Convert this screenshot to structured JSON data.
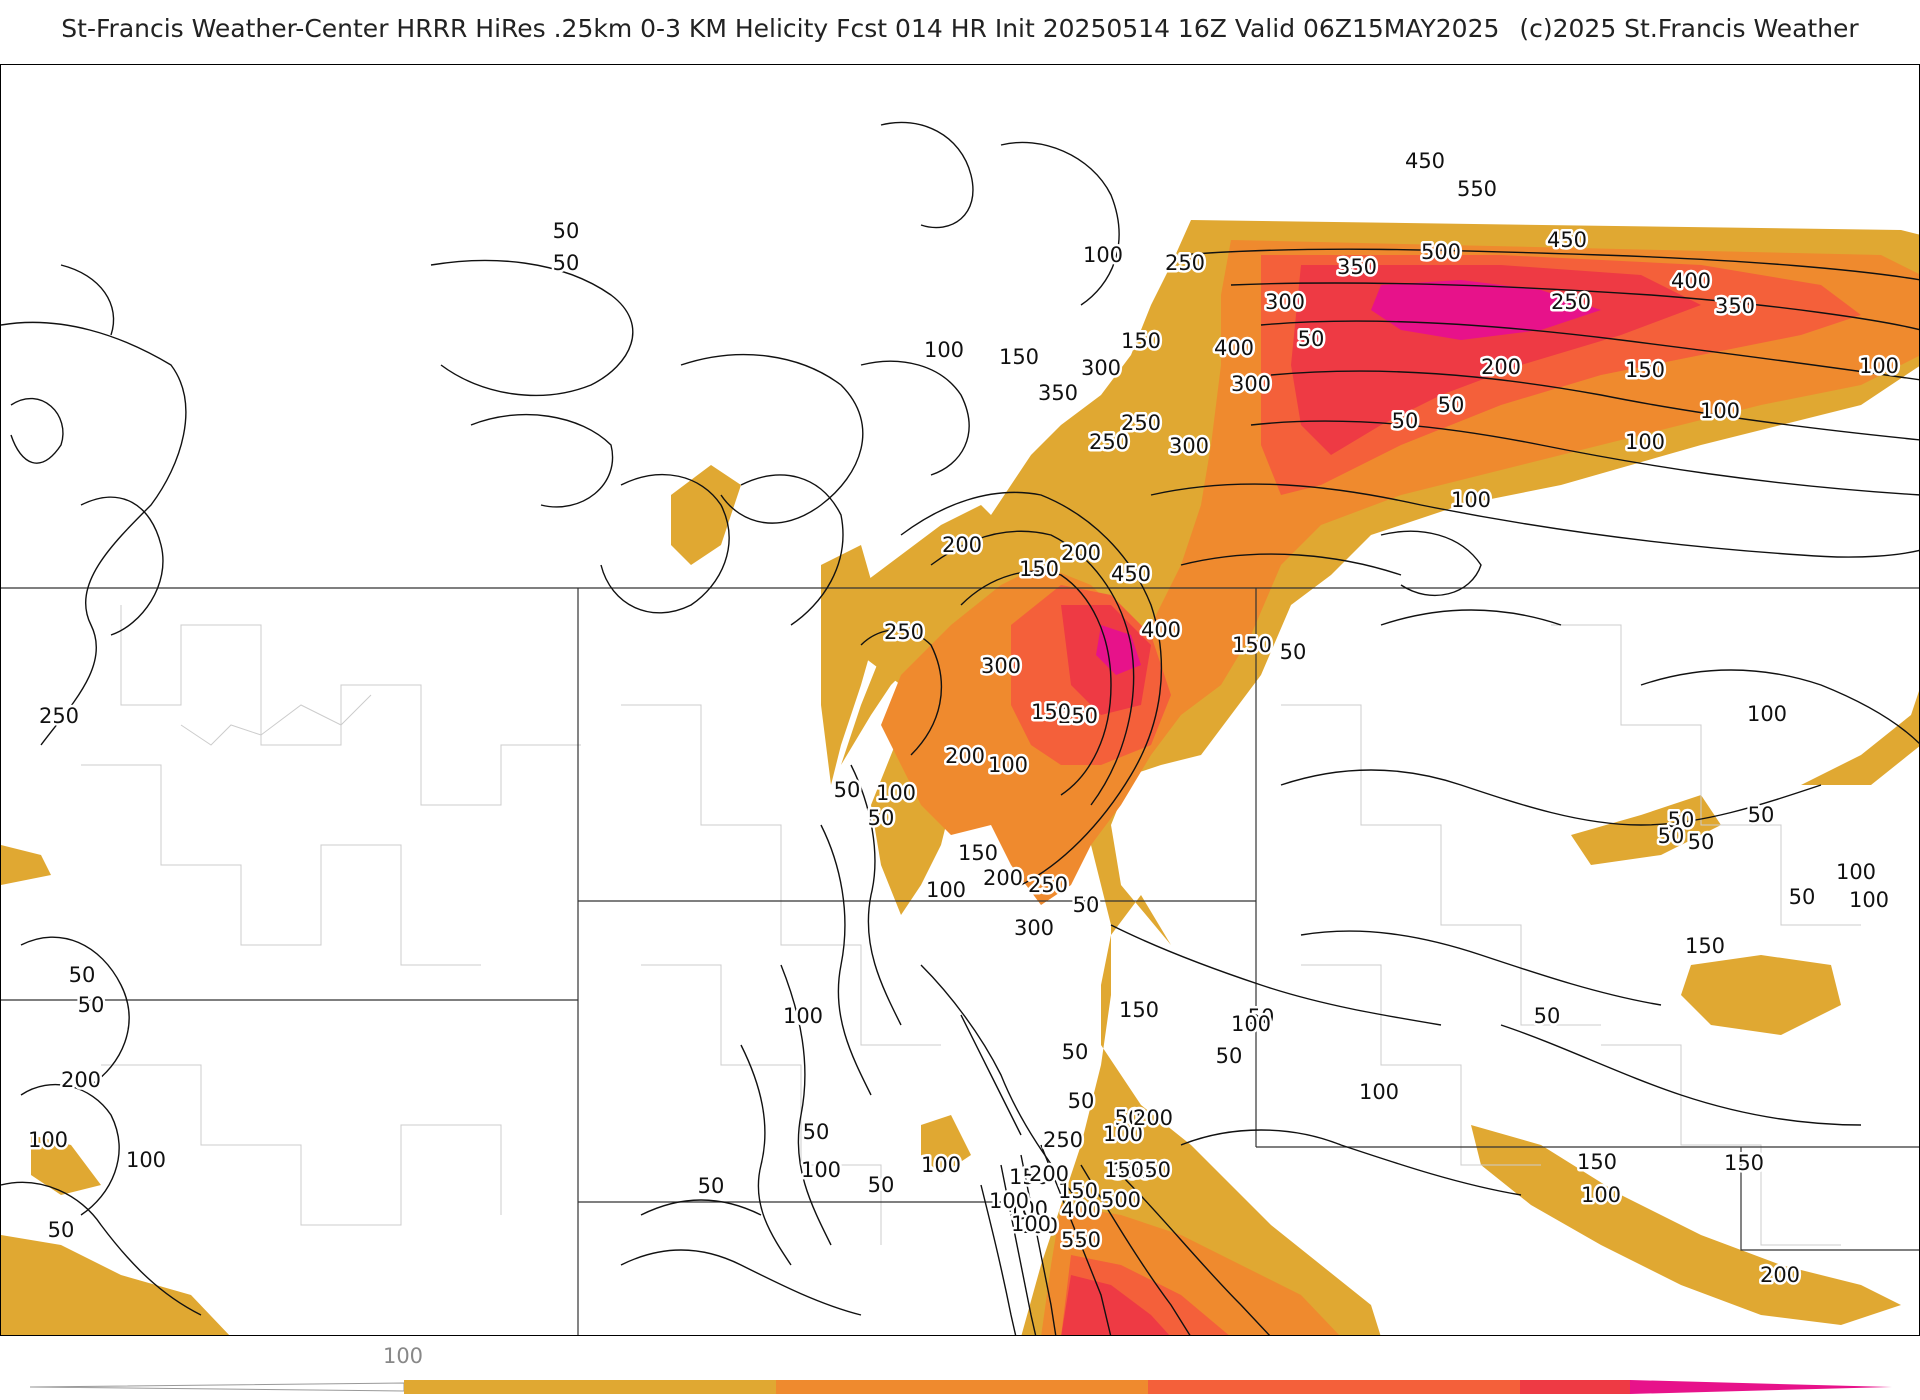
{
  "header": {
    "title": "St-Francis Weather-Center HRRR HiRes .25km 0-3 KM Helicity Fcst 014 HR Init 20250514 16Z  Valid 06Z15MAY2025",
    "copyright": "(c)2025 St.Francis Weather"
  },
  "colors": {
    "band_100_200": "#e0a832",
    "band_200_300": "#ef8a2e",
    "band_300_400": "#f4603a",
    "band_400_500": "#ee3a44",
    "band_500_plus": "#e7128a",
    "contour": "#111111",
    "boundary": "#cccccc",
    "state_line": "#333333"
  },
  "colorbar": {
    "label": "100",
    "segments": [
      "#e0a832",
      "#ef8a2e",
      "#f4603a",
      "#ee3a44",
      "#e7128a"
    ]
  },
  "contour_labels": [
    "450",
    "550",
    "500",
    "450",
    "400",
    "350",
    "350",
    "300",
    "250",
    "300",
    "250",
    "200",
    "150",
    "100",
    "50",
    "100",
    "50",
    "50",
    "100",
    "100",
    "100",
    "150",
    "50",
    "50",
    "300",
    "350",
    "250",
    "300",
    "150",
    "100",
    "400",
    "250",
    "200",
    "450",
    "400",
    "150",
    "50",
    "150",
    "200",
    "250",
    "300",
    "250",
    "150",
    "200",
    "100",
    "50",
    "100",
    "50",
    "150",
    "100",
    "200",
    "250",
    "300",
    "100",
    "50",
    "150",
    "50",
    "50",
    "100",
    "200",
    "250",
    "300",
    "150",
    "150",
    "100",
    "200",
    "350",
    "500",
    "400",
    "100",
    "200",
    "150",
    "550",
    "100",
    "50",
    "50",
    "100",
    "50",
    "100",
    "50",
    "50",
    "100",
    "50",
    "150",
    "100",
    "150",
    "150",
    "200",
    "100",
    "50",
    "50",
    "50",
    "50",
    "100",
    "50",
    "100",
    "50",
    "100",
    "50",
    "50",
    "100",
    "50",
    "100",
    "200",
    "250"
  ]
}
